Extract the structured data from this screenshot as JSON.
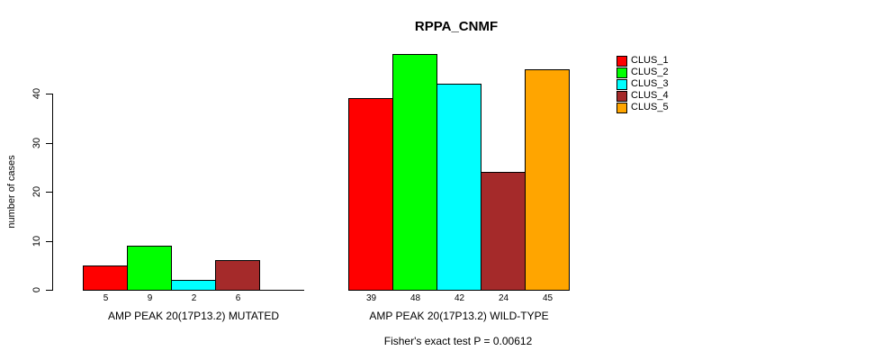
{
  "chart_data": {
    "type": "bar",
    "title": "RPPA_CNMF",
    "ylabel": "number of cases",
    "xlabel": "",
    "ylim": [
      0,
      48
    ],
    "yticks": [
      0,
      10,
      20,
      30,
      40
    ],
    "grid": false,
    "legend_position": "right",
    "bar_border_color": "#000000",
    "background_color": "#ffffff",
    "categories": [
      "AMP PEAK 20(17P13.2) MUTATED",
      "AMP PEAK 20(17P13.2) WILD-TYPE"
    ],
    "series": [
      {
        "name": "CLUS_1",
        "color": "#FF0000",
        "values": [
          5,
          39
        ]
      },
      {
        "name": "CLUS_2",
        "color": "#00FF00",
        "values": [
          9,
          48
        ]
      },
      {
        "name": "CLUS_3",
        "color": "#00FFFF",
        "values": [
          2,
          42
        ]
      },
      {
        "name": "CLUS_4",
        "color": "#A52A2A",
        "values": [
          6,
          24
        ]
      },
      {
        "name": "CLUS_5",
        "color": "#FFA500",
        "values": [
          0,
          45
        ]
      }
    ],
    "value_labels": [
      [
        "5",
        "9",
        "2",
        "6",
        ""
      ],
      [
        "39",
        "48",
        "42",
        "24",
        "45"
      ]
    ],
    "annotation": "Fisher's exact test P = 0.00612"
  }
}
